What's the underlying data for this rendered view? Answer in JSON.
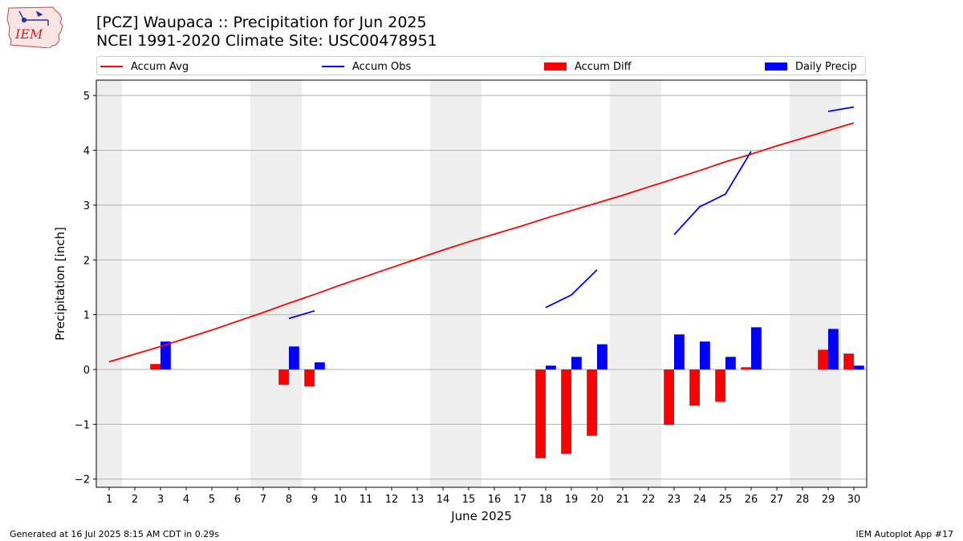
{
  "logo": {
    "text": "IEM",
    "icon": "iem-iowa-logo"
  },
  "title_line1": "[PCZ] Waupaca :: Precipitation for Jun 2025",
  "title_line2": "NCEI 1991-2020 Climate Site: USC00478951",
  "legend": [
    {
      "label": "Accum Avg",
      "kind": "line",
      "color": "#ff0000"
    },
    {
      "label": "Accum Obs",
      "kind": "line",
      "color": "#0000ff"
    },
    {
      "label": "Accum Diff",
      "kind": "patch",
      "color": "#ff0000"
    },
    {
      "label": "Daily Precip",
      "kind": "patch",
      "color": "#0000ff"
    }
  ],
  "footer_left": "Generated at 16 Jul 2025 8:15 AM CDT in 0.29s",
  "footer_right": "IEM Autoplot App #17",
  "chart_data": {
    "type": "bar",
    "xlabel": "June 2025",
    "ylabel": "Precipitation [inch]",
    "x": [
      1,
      2,
      3,
      4,
      5,
      6,
      7,
      8,
      9,
      10,
      11,
      12,
      13,
      14,
      15,
      16,
      17,
      18,
      19,
      20,
      21,
      22,
      23,
      24,
      25,
      26,
      27,
      28,
      29,
      30
    ],
    "xlim": [
      0.5,
      30.5
    ],
    "ylim": [
      -2.15,
      5.28
    ],
    "yticks": [
      -2,
      -1,
      0,
      1,
      2,
      3,
      4,
      5
    ],
    "ytick_labels": [
      "−2",
      "−1",
      "0",
      "1",
      "2",
      "3",
      "4",
      "5"
    ],
    "grid": "y",
    "legend_placement": "top",
    "weekend_shading": [
      [
        0.5,
        1.5
      ],
      [
        6.5,
        8.5
      ],
      [
        13.5,
        15.5
      ],
      [
        20.5,
        22.5
      ],
      [
        27.5,
        29.5
      ]
    ],
    "colors": {
      "avg": "#ff0000",
      "obs": "#0000ff",
      "diff": "#ff0000",
      "daily": "#0000ff",
      "shade": "#eeeeee",
      "grid": "#b0b0b0"
    },
    "series": [
      {
        "name": "Accum Avg",
        "kind": "line",
        "values": [
          0.14,
          0.28,
          0.42,
          0.57,
          0.72,
          0.88,
          1.04,
          1.21,
          1.37,
          1.54,
          1.7,
          1.86,
          2.02,
          2.18,
          2.33,
          2.47,
          2.61,
          2.76,
          2.9,
          3.04,
          3.18,
          3.33,
          3.48,
          3.63,
          3.79,
          3.93,
          4.08,
          4.22,
          4.36,
          4.5
        ]
      },
      {
        "name": "Accum Obs",
        "kind": "line",
        "values": [
          null,
          null,
          null,
          null,
          null,
          null,
          null,
          0.93,
          1.07,
          null,
          null,
          null,
          null,
          null,
          null,
          null,
          null,
          1.13,
          1.36,
          1.82,
          null,
          null,
          2.46,
          2.97,
          3.2,
          3.98,
          null,
          null,
          4.71,
          4.79
        ]
      },
      {
        "name": "Accum Diff",
        "kind": "bar",
        "offset": -0.2,
        "values": [
          0,
          0,
          0.1,
          0,
          0,
          0,
          0,
          -0.28,
          -0.31,
          0,
          0,
          0,
          0,
          0,
          0,
          0,
          0,
          -1.62,
          -1.54,
          -1.21,
          0,
          0,
          -1.01,
          -0.66,
          -0.59,
          0.04,
          0,
          0,
          0.36,
          0.29
        ]
      },
      {
        "name": "Daily Precip",
        "kind": "bar",
        "offset": 0.2,
        "values": [
          0,
          0,
          0.51,
          0,
          0,
          0,
          0,
          0.42,
          0.13,
          0,
          0,
          0,
          0,
          0,
          0,
          0,
          0,
          0.07,
          0.23,
          0.46,
          0,
          0,
          0.64,
          0.51,
          0.23,
          0.77,
          0,
          0,
          0.74,
          0.07
        ]
      }
    ]
  }
}
